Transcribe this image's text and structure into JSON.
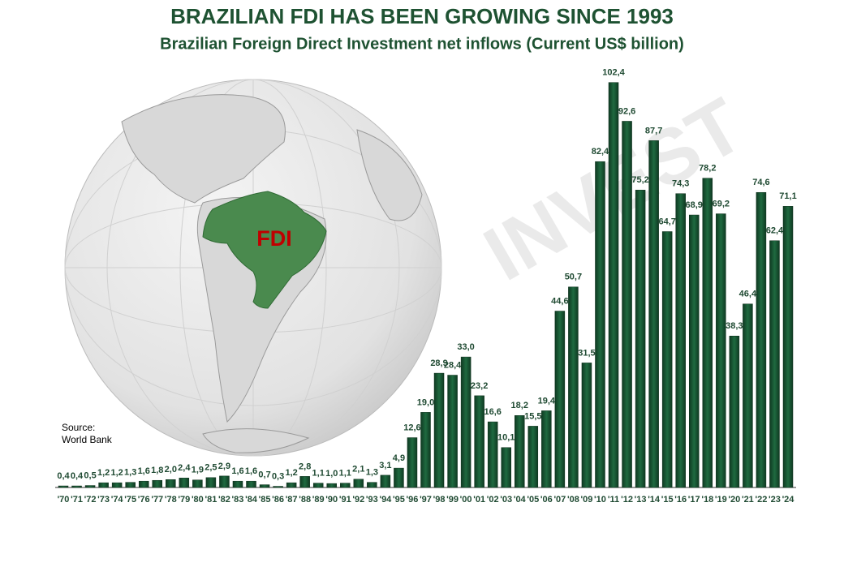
{
  "chart_data": {
    "type": "bar",
    "title": "BRAZILIAN FDI HAS BEEN GROWING SINCE 1993",
    "subtitle": "Brazilian Foreign Direct Investment net inflows (Current US$ billion)",
    "source": "Source:\nWorld Bank",
    "map_label": "FDI",
    "watermark": "INVEST",
    "color": "#174a2e",
    "ylim": [
      0,
      105
    ],
    "categories": [
      "'70",
      "'71",
      "'72",
      "'73",
      "'74",
      "'75",
      "'76",
      "'77",
      "'78",
      "'79",
      "'80",
      "'81",
      "'82",
      "'83",
      "'84",
      "'85",
      "'86",
      "'87",
      "'88",
      "'89",
      "'90",
      "'91",
      "'92",
      "'93",
      "'94",
      "'95",
      "'96",
      "'97",
      "'98",
      "'99",
      "'00",
      "'01",
      "'02",
      "'03",
      "'04",
      "'05",
      "'06",
      "'07",
      "'08",
      "'09",
      "'10",
      "'11",
      "'12",
      "'13",
      "'14",
      "'15",
      "'16",
      "'17",
      "'18",
      "'19",
      "'20",
      "'21",
      "'22",
      "'23",
      "'24"
    ],
    "values": [
      0.4,
      0.4,
      0.5,
      1.2,
      1.2,
      1.3,
      1.6,
      1.8,
      2.0,
      2.4,
      1.9,
      2.5,
      2.9,
      1.6,
      1.6,
      0.7,
      0.3,
      1.2,
      2.8,
      1.1,
      1.0,
      1.1,
      2.1,
      1.3,
      3.1,
      4.9,
      12.6,
      19.0,
      28.9,
      28.4,
      33.0,
      23.2,
      16.6,
      10.1,
      18.2,
      15.5,
      19.4,
      44.6,
      50.7,
      31.5,
      82.4,
      102.4,
      92.6,
      75.2,
      87.7,
      64.7,
      74.3,
      68.9,
      78.2,
      69.2,
      38.3,
      46.4,
      74.6,
      62.4,
      71.1
    ],
    "value_labels": [
      "0,4",
      "0,4",
      "0,5",
      "1,2",
      "1,2",
      "1,3",
      "1,6",
      "1,8",
      "2,0",
      "2,4",
      "1,9",
      "2,5",
      "2,9",
      "1,6",
      "1,6",
      "0,7",
      "0,3",
      "1,2",
      "2,8",
      "1,1",
      "1,0",
      "1,1",
      "2,1",
      "1,3",
      "3,1",
      "4,9",
      "12,6",
      "19,0",
      "28,9",
      "28,4",
      "33,0",
      "23,2",
      "16,6",
      "10,1",
      "18,2",
      "15,5",
      "19,4",
      "44,6",
      "50,7",
      "31,5",
      "82,4",
      "102,4",
      "92,6",
      "75,2",
      "87,7",
      "64,7",
      "74,3",
      "68,9",
      "78,2",
      "69,2",
      "38,3",
      "46,4",
      "74,6",
      "62,4",
      "71,1"
    ]
  }
}
